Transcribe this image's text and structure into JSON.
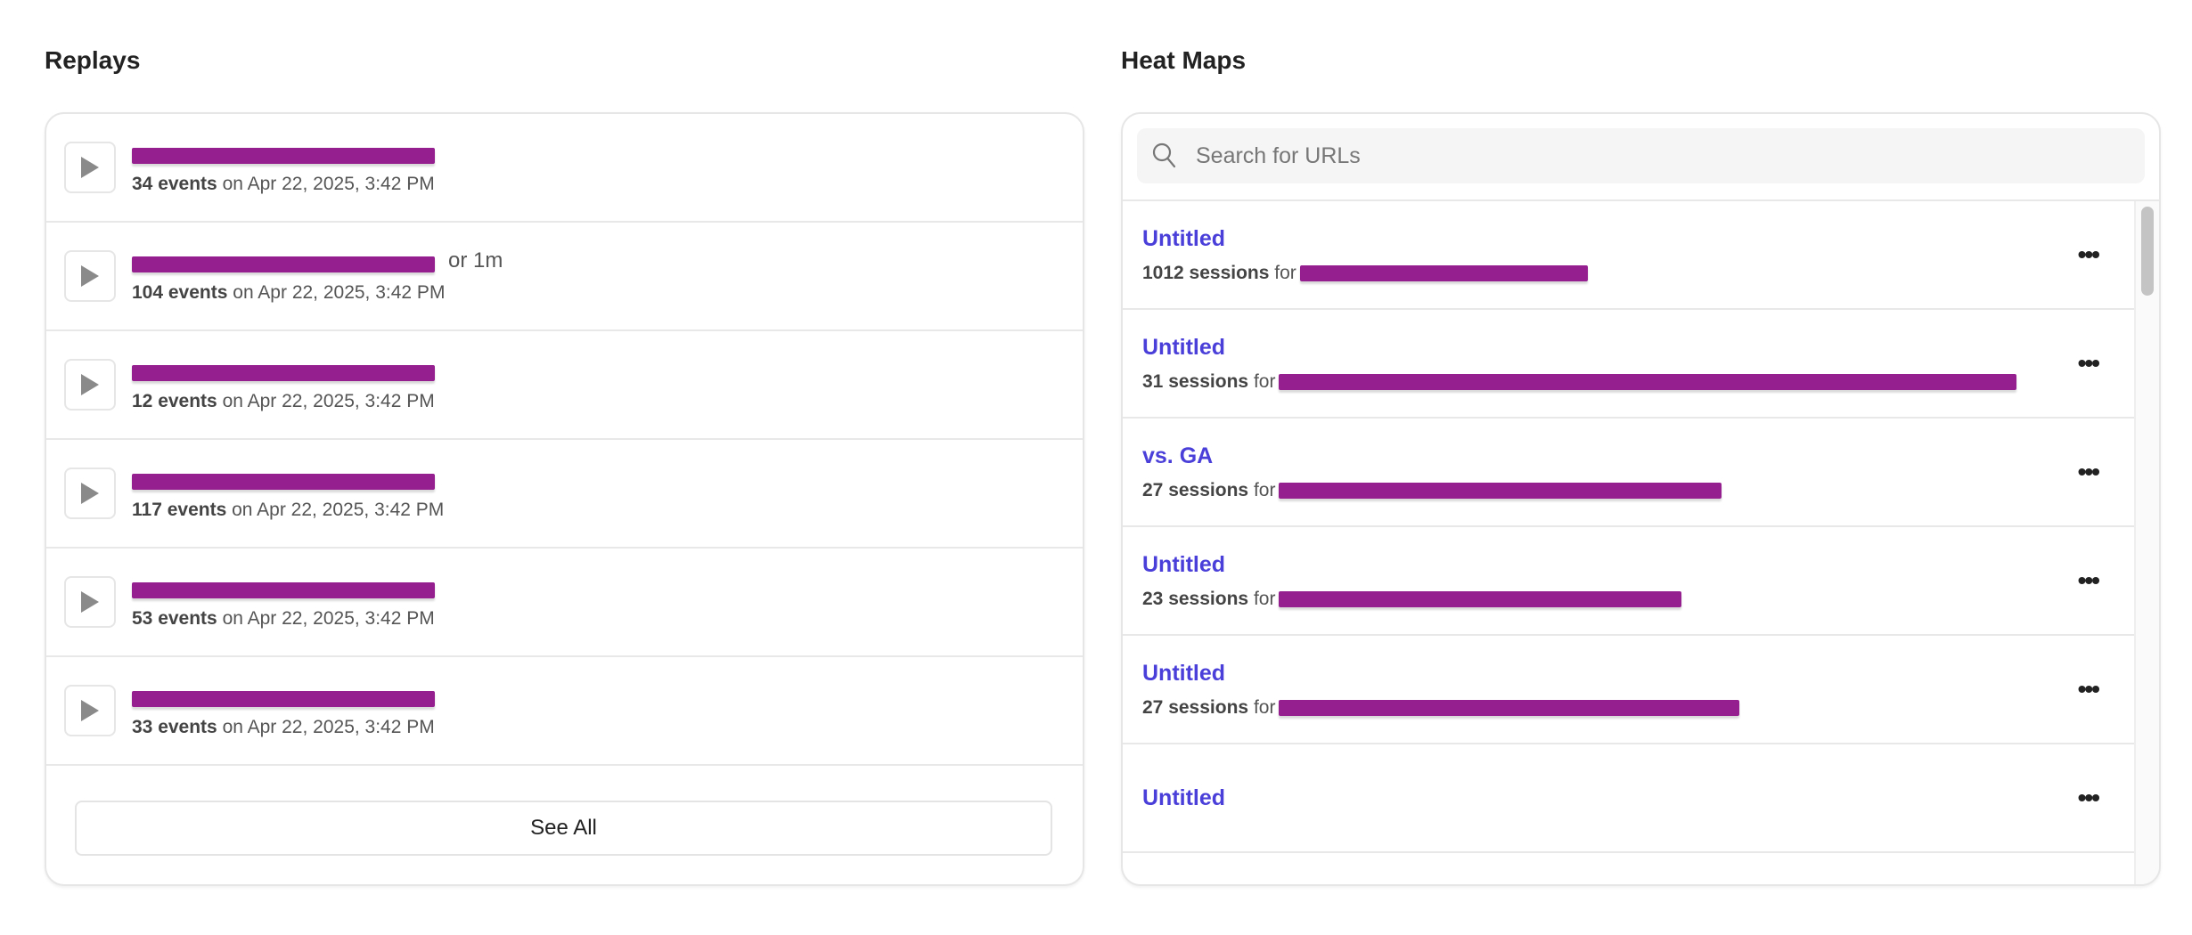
{
  "replays": {
    "title": "Replays",
    "items": [
      {
        "name_suffix": "",
        "events": "34 events",
        "date": "on Apr 22, 2025, 3:42 PM"
      },
      {
        "name_suffix": "or 1m",
        "events": "104 events",
        "date": "on Apr 22, 2025, 3:42 PM"
      },
      {
        "name_suffix": "",
        "events": "12 events",
        "date": "on Apr 22, 2025, 3:42 PM"
      },
      {
        "name_suffix": "",
        "events": "117 events",
        "date": "on Apr 22, 2025, 3:42 PM"
      },
      {
        "name_suffix": "",
        "events": "53 events",
        "date": "on Apr 22, 2025, 3:42 PM"
      },
      {
        "name_suffix": "",
        "events": "33 events",
        "date": "on Apr 22, 2025, 3:42 PM"
      }
    ],
    "see_all_label": "See All"
  },
  "heatmaps": {
    "title": "Heat Maps",
    "search_placeholder": "Search for URLs",
    "items": [
      {
        "title": "Untitled",
        "sessions": "1012 sessions",
        "for_label": "for"
      },
      {
        "title": "Untitled",
        "sessions": "31 sessions",
        "for_label": "for"
      },
      {
        "title": "vs. GA",
        "sessions": "27 sessions",
        "for_label": "for"
      },
      {
        "title": "Untitled",
        "sessions": "23 sessions",
        "for_label": "for"
      },
      {
        "title": "Untitled",
        "sessions": "27 sessions",
        "for_label": "for"
      },
      {
        "title": "Untitled",
        "sessions": "",
        "for_label": ""
      }
    ],
    "more_label": "•••"
  },
  "colors": {
    "link": "#4a3fd9",
    "redaction": "#951f8f"
  },
  "icons": {
    "play": "play-icon",
    "search": "search-icon",
    "more": "more-horizontal-icon"
  }
}
